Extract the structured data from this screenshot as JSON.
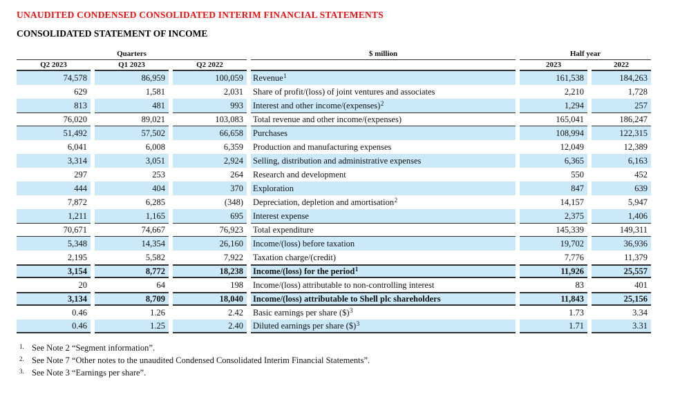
{
  "page": {
    "title": "UNAUDITED CONDENSED CONSOLIDATED INTERIM FINANCIAL STATEMENTS",
    "subtitle": "CONSOLIDATED STATEMENT OF INCOME"
  },
  "colors": {
    "title_red": "#ee1111",
    "row_shade": "#cce9f9",
    "rule": "#2e2e2e",
    "text": "#111111"
  },
  "table": {
    "group_headers": {
      "quarters": "Quarters",
      "unit": "$ million",
      "half_year": "Half year"
    },
    "column_headers": {
      "q2_2023": "Q2 2023",
      "q1_2023": "Q1 2023",
      "q2_2022": "Q2 2022",
      "hy_2023": "2023",
      "hy_2022": "2022"
    },
    "rows": [
      {
        "values": [
          "74,578",
          "86,959",
          "100,059",
          "161,538",
          "184,263"
        ],
        "label": "Revenue",
        "sup": "1",
        "shaded": true,
        "bold": false,
        "border_top": "",
        "border_bottom": ""
      },
      {
        "values": [
          "629",
          "1,581",
          "2,031",
          "2,210",
          "1,728"
        ],
        "label": "Share of profit/(loss) of joint ventures and associates",
        "sup": "",
        "shaded": false,
        "bold": false,
        "border_top": "",
        "border_bottom": ""
      },
      {
        "values": [
          "813",
          "481",
          "993",
          "1,294",
          "257"
        ],
        "label": "Interest and other income/(expenses)",
        "sup": "2",
        "shaded": true,
        "bold": false,
        "border_top": "",
        "border_bottom": ""
      },
      {
        "values": [
          "76,020",
          "89,021",
          "103,083",
          "165,041",
          "186,247"
        ],
        "label": "Total revenue and other income/(expenses)",
        "sup": "",
        "shaded": false,
        "bold": false,
        "border_top": "thin",
        "border_bottom": "thin"
      },
      {
        "values": [
          "51,492",
          "57,502",
          "66,658",
          "108,994",
          "122,315"
        ],
        "label": "Purchases",
        "sup": "",
        "shaded": true,
        "bold": false,
        "border_top": "",
        "border_bottom": ""
      },
      {
        "values": [
          "6,041",
          "6,008",
          "6,359",
          "12,049",
          "12,389"
        ],
        "label": "Production and manufacturing expenses",
        "sup": "",
        "shaded": false,
        "bold": false,
        "border_top": "",
        "border_bottom": ""
      },
      {
        "values": [
          "3,314",
          "3,051",
          "2,924",
          "6,365",
          "6,163"
        ],
        "label": "Selling, distribution and administrative expenses",
        "sup": "",
        "shaded": true,
        "bold": false,
        "border_top": "",
        "border_bottom": ""
      },
      {
        "values": [
          "297",
          "253",
          "264",
          "550",
          "452"
        ],
        "label": "Research and development",
        "sup": "",
        "shaded": false,
        "bold": false,
        "border_top": "",
        "border_bottom": ""
      },
      {
        "values": [
          "444",
          "404",
          "370",
          "847",
          "639"
        ],
        "label": "Exploration",
        "sup": "",
        "shaded": true,
        "bold": false,
        "border_top": "",
        "border_bottom": ""
      },
      {
        "values": [
          "7,872",
          "6,285",
          "(348)",
          "14,157",
          "5,947"
        ],
        "label": "Depreciation, depletion and amortisation",
        "sup": "2",
        "shaded": false,
        "bold": false,
        "border_top": "",
        "border_bottom": ""
      },
      {
        "values": [
          "1,211",
          "1,165",
          "695",
          "2,375",
          "1,406"
        ],
        "label": "Interest expense",
        "sup": "",
        "shaded": true,
        "bold": false,
        "border_top": "",
        "border_bottom": ""
      },
      {
        "values": [
          "70,671",
          "74,667",
          "76,923",
          "145,339",
          "149,311"
        ],
        "label": "Total expenditure",
        "sup": "",
        "shaded": false,
        "bold": false,
        "border_top": "thin",
        "border_bottom": "thin"
      },
      {
        "values": [
          "5,348",
          "14,354",
          "26,160",
          "19,702",
          "36,936"
        ],
        "label": "Income/(loss) before taxation",
        "sup": "",
        "shaded": true,
        "bold": false,
        "border_top": "",
        "border_bottom": ""
      },
      {
        "values": [
          "2,195",
          "5,582",
          "7,922",
          "7,776",
          "11,379"
        ],
        "label": "Taxation charge/(credit)",
        "sup": "",
        "shaded": false,
        "bold": false,
        "border_top": "",
        "border_bottom": ""
      },
      {
        "values": [
          "3,154",
          "8,772",
          "18,238",
          "11,926",
          "25,557"
        ],
        "label": "Income/(loss) for the period",
        "sup": "1",
        "shaded": true,
        "bold": true,
        "border_top": "thick",
        "border_bottom": "thick"
      },
      {
        "values": [
          "20",
          "64",
          "198",
          "83",
          "401"
        ],
        "label": "Income/(loss) attributable to non-controlling interest",
        "sup": "",
        "shaded": false,
        "bold": false,
        "border_top": "",
        "border_bottom": ""
      },
      {
        "values": [
          "3,134",
          "8,709",
          "18,040",
          "11,843",
          "25,156"
        ],
        "label": "Income/(loss) attributable to Shell plc shareholders",
        "sup": "",
        "shaded": true,
        "bold": true,
        "border_top": "thick",
        "border_bottom": "thick"
      },
      {
        "values": [
          "0.46",
          "1.26",
          "2.42",
          "1.73",
          "3.34"
        ],
        "label": "Basic earnings per share ($)",
        "sup": "3",
        "shaded": false,
        "bold": false,
        "border_top": "",
        "border_bottom": ""
      },
      {
        "values": [
          "0.46",
          "1.25",
          "2.40",
          "1.71",
          "3.31"
        ],
        "label": "Diluted earnings per share ($)",
        "sup": "3",
        "shaded": true,
        "bold": false,
        "border_top": "",
        "border_bottom": "thick"
      }
    ]
  },
  "footnotes": [
    {
      "num": "1.",
      "text": "See Note 2 “Segment information”."
    },
    {
      "num": "2.",
      "text": "See Note 7 “Other notes to the unaudited Condensed Consolidated Interim Financial Statements”."
    },
    {
      "num": "3.",
      "text": "See Note 3 “Earnings per share”."
    }
  ]
}
